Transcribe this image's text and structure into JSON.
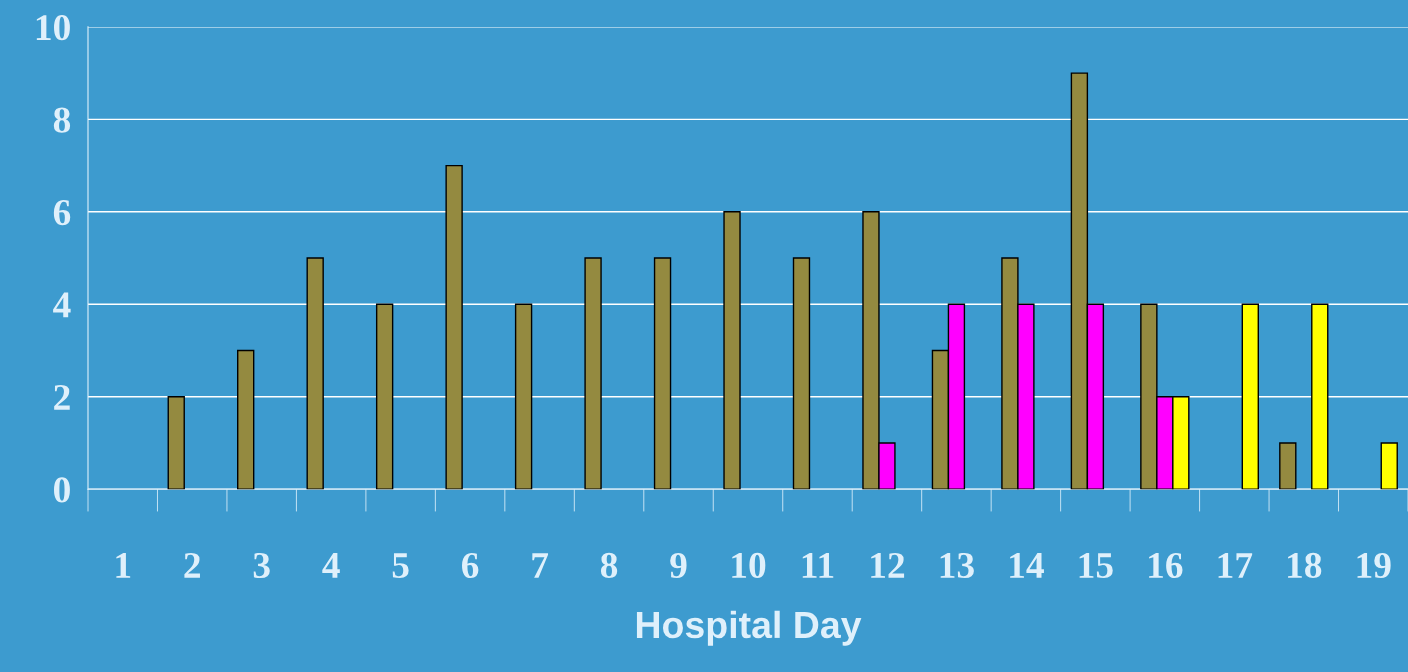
{
  "chart_data": {
    "type": "bar",
    "xlabel": "Hospital Day",
    "categories": [
      "1",
      "2",
      "3",
      "4",
      "5",
      "6",
      "7",
      "8",
      "9",
      "10",
      "11",
      "12",
      "13",
      "14",
      "15",
      "16",
      "17",
      "18",
      "19"
    ],
    "series": [
      {
        "color": "#948a40",
        "values": [
          null,
          2,
          3,
          5,
          4,
          7,
          4,
          5,
          5,
          6,
          5,
          6,
          3,
          5,
          9,
          4,
          null,
          1,
          null
        ]
      },
      {
        "color": "#ff00ff",
        "values": [
          null,
          null,
          null,
          null,
          null,
          null,
          null,
          null,
          null,
          null,
          null,
          1,
          4,
          4,
          4,
          2,
          null,
          null,
          null
        ]
      },
      {
        "color": "#ffff00",
        "values": [
          null,
          null,
          null,
          null,
          null,
          null,
          null,
          null,
          null,
          null,
          null,
          null,
          null,
          null,
          null,
          2,
          4,
          4,
          1
        ]
      }
    ],
    "ylim": [
      0,
      10
    ],
    "yticks": [
      0,
      2,
      4,
      6,
      8,
      10
    ],
    "grid": "y",
    "legend": false
  }
}
